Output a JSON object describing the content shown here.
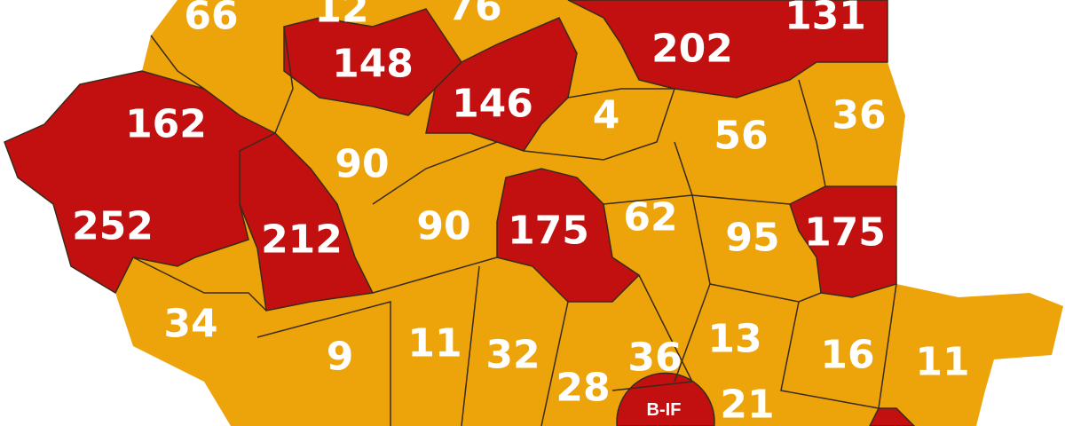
{
  "colors": {
    "low": "#eda40a",
    "high": "#c20f0f",
    "border": "#3a2a1a",
    "label": "#ffffff"
  },
  "labels": [
    "66",
    "12",
    "76",
    "131",
    "148",
    "202",
    "162",
    "146",
    "4",
    "56",
    "36",
    "90",
    "252",
    "212",
    "90",
    "175",
    "62",
    "95",
    "175",
    "34",
    "9",
    "11",
    "32",
    "36",
    "13",
    "16",
    "11",
    "28",
    "B-IF",
    "21"
  ],
  "levels": [
    "low",
    "low",
    "low",
    "high",
    "high",
    "high",
    "high",
    "high",
    "low",
    "low",
    "low",
    "low",
    "high",
    "high",
    "low",
    "high",
    "low",
    "low",
    "high",
    "low",
    "low",
    "low",
    "low",
    "low",
    "low",
    "low",
    "low",
    "low",
    "high",
    "low"
  ]
}
